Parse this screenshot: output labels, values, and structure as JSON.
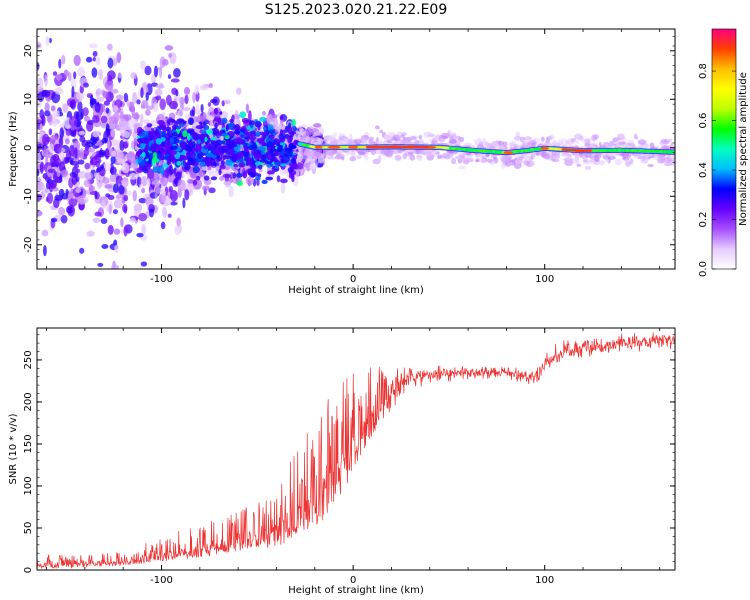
{
  "title": "S125.2023.020.21.22.E09",
  "chart_data": [
    {
      "type": "heatmap",
      "panel": "top",
      "xlabel": "Height of straight line (km)",
      "ylabel": "Frequency (Hz)",
      "xlim": [
        -165,
        168
      ],
      "ylim": [
        -25,
        24.5
      ],
      "xticks": [
        -100,
        0,
        100
      ],
      "yticks": [
        -20,
        -10,
        0,
        10,
        20
      ],
      "grid": false,
      "colorbar": {
        "label": "Normalized spectral amplitude",
        "range": [
          0.0,
          0.97
        ],
        "ticks": [
          "0.0",
          "0.2",
          "0.4",
          "0.6",
          "0.8"
        ],
        "colors": [
          "#ffffff",
          "#e6ccff",
          "#a64dff",
          "#6600ff",
          "#0000ff",
          "#00bfff",
          "#00ffbf",
          "#00ff00",
          "#bfff00",
          "#ffff00",
          "#ffbf00",
          "#ff4000",
          "#ff0080"
        ]
      },
      "ridge": [
        {
          "x": -35,
          "freq": 2.0
        },
        {
          "x": -28,
          "freq": 0.8
        },
        {
          "x": -20,
          "freq": 0.1
        },
        {
          "x": 0,
          "freq": 0.1
        },
        {
          "x": 20,
          "freq": 0.2
        },
        {
          "x": 45,
          "freq": 0.1
        },
        {
          "x": 65,
          "freq": -0.6
        },
        {
          "x": 80,
          "freq": -1.0
        },
        {
          "x": 90,
          "freq": -0.6
        },
        {
          "x": 100,
          "freq": -0.1
        },
        {
          "x": 120,
          "freq": -0.6
        },
        {
          "x": 140,
          "freq": -0.5
        },
        {
          "x": 168,
          "freq": -0.9
        }
      ]
    },
    {
      "type": "line",
      "panel": "bottom",
      "xlabel": "Height of straight line (km)",
      "ylabel": "SNR (10 * v/v)",
      "xlim": [
        -165,
        168
      ],
      "ylim": [
        0,
        288
      ],
      "xticks": [
        -100,
        0,
        100
      ],
      "yticks": [
        0,
        50,
        100,
        150,
        200,
        250
      ],
      "grid": false,
      "series": [
        {
          "name": "SNR",
          "color": "#ee3333",
          "envelope": {
            "x": [
              -165,
              -140,
              -120,
              -100,
              -80,
              -60,
              -45,
              -35,
              -25,
              -15,
              -5,
              0,
              10,
              20,
              30,
              40,
              60,
              80,
              95,
              100,
              110,
              130,
              150,
              168
            ],
            "low": [
              2,
              3,
              5,
              10,
              15,
              20,
              25,
              30,
              40,
              60,
              90,
              120,
              160,
              190,
              210,
              220,
              225,
              225,
              215,
              230,
              245,
              255,
              260,
              262
            ],
            "high": [
              18,
              18,
              22,
              40,
              55,
              70,
              95,
              120,
              160,
              200,
              230,
              240,
              245,
              245,
              245,
              245,
              245,
              245,
              240,
              260,
              275,
              280,
              285,
              285
            ]
          }
        }
      ]
    }
  ]
}
